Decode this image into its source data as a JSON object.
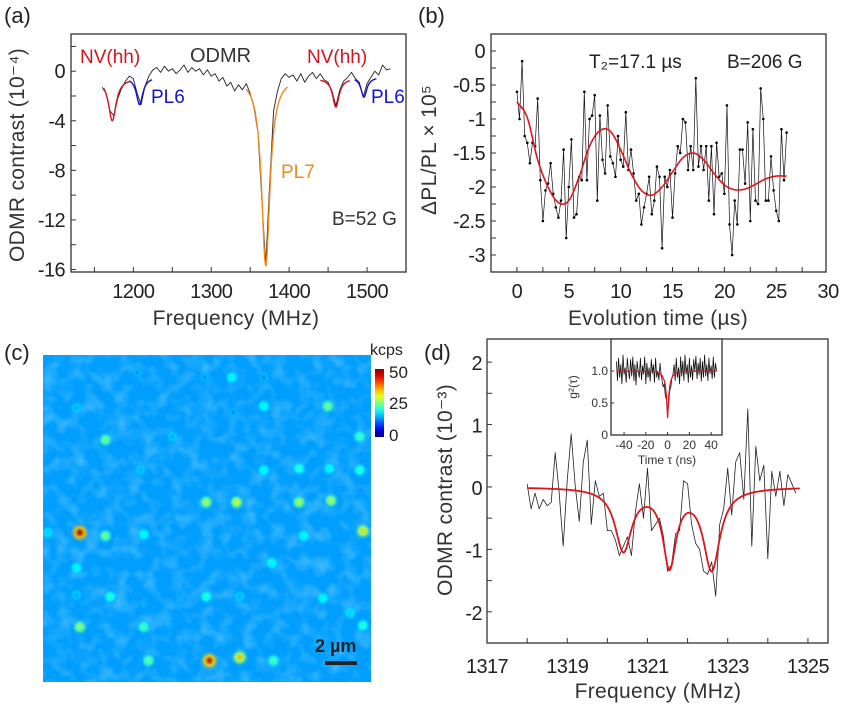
{
  "panels": {
    "a": "(a)",
    "b": "(b)",
    "c": "(c)",
    "d": "(d)"
  },
  "chart_data": [
    {
      "panel": "(a)",
      "type": "line",
      "xlabel": "Frequency (MHz)",
      "ylabel": "ODMR contrast (10⁻⁴)",
      "xlim": [
        1120,
        1550
      ],
      "ylim": [
        -16.2,
        3
      ],
      "xticks": [
        1200,
        1300,
        1400,
        1500
      ],
      "xtick_labels": [
        "1200",
        "1300",
        "1400",
        "1500"
      ],
      "xminor": 50,
      "yticks": [
        0,
        -4,
        -8,
        -12,
        -16
      ],
      "ytick_labels": [
        "0",
        "-4",
        "-8",
        "-12",
        "-16"
      ],
      "yminor": 2,
      "grid": false,
      "annotations": {
        "title": "ODMR",
        "nv_left": "NV(hh)",
        "nv_right": "NV(hh)",
        "pl6_left": "PL6",
        "pl6_right": "PL6",
        "pl7": "PL7",
        "field": "B=52 G"
      },
      "data": {
        "color": "#222222",
        "x_start": 1160,
        "x_step": 5,
        "y": [
          -1.3,
          -1.8,
          -3.2,
          -3.6,
          -2.2,
          -1.4,
          -0.8,
          -0.4,
          -0.6,
          -1.8,
          -2.7,
          -1.2,
          -0.4,
          0.1,
          0.3,
          -0.1,
          0.4,
          0.0,
          0.2,
          -0.2,
          0.1,
          0.5,
          -0.1,
          0.3,
          0.0,
          0.2,
          -0.3,
          0.1,
          -0.4,
          -0.2,
          -0.8,
          -0.5,
          -1.2,
          -0.9,
          -1.6,
          -1.1,
          -1.5,
          -1.0,
          -1.8,
          -3.0,
          -5.0,
          -10.5,
          -15.6,
          -9.0,
          -3.2,
          -1.6,
          -0.6,
          -0.2,
          -0.5,
          -0.3,
          -0.8,
          -0.2,
          -0.9,
          -0.4,
          -0.1,
          -0.6,
          -0.2,
          -0.7,
          -0.9,
          -1.6,
          -2.8,
          -1.5,
          -0.8,
          -0.5,
          -0.1,
          -0.6,
          -0.9,
          -2.1,
          -1.0,
          -0.5,
          0.0,
          -0.3,
          0.5,
          0.1,
          0.2
        ]
      },
      "fits": [
        {
          "label": "NV(hh)",
          "color": "#d4141c",
          "center": 1173,
          "depth": -3.4,
          "width": 6,
          "baseline": -0.6,
          "range": [
            1162,
            1195
          ]
        },
        {
          "label": "PL6",
          "color": "#1414c8",
          "center": 1208,
          "depth": -2.2,
          "width": 5,
          "baseline": -0.5,
          "range": [
            1195,
            1224
          ]
        },
        {
          "label": "PL7",
          "color": "#f08a1c",
          "center": 1370,
          "depth": -15.2,
          "width": 6.5,
          "baseline": -0.5,
          "range": [
            1345,
            1398
          ]
        },
        {
          "label": "NV(hh)",
          "color": "#d4141c",
          "center": 1460,
          "depth": -2.3,
          "width": 5,
          "baseline": -0.6,
          "range": [
            1440,
            1478
          ]
        },
        {
          "label": "PL6",
          "color": "#1414c8",
          "center": 1496,
          "depth": -1.6,
          "width": 4.5,
          "baseline": -0.5,
          "range": [
            1484,
            1512
          ]
        }
      ]
    },
    {
      "panel": "(b)",
      "type": "line",
      "xlabel": "Evolution time (µs)",
      "ylabel": "ΔPL/PL × 10⁵",
      "xlim": [
        -2.5,
        29.8
      ],
      "ylim": [
        -3.25,
        0.25
      ],
      "xticks": [
        0,
        5,
        10,
        15,
        20,
        25,
        30
      ],
      "xtick_labels": [
        "0",
        "5",
        "10",
        "15",
        "20",
        "25",
        "30"
      ],
      "xminor": 2.5,
      "yticks": [
        0,
        -0.5,
        -1,
        -1.5,
        -2,
        -2.5,
        -3
      ],
      "ytick_labels": [
        "0",
        "-0.5",
        "-1",
        "-1.5",
        "-2",
        "-2.5",
        "-3"
      ],
      "yminor": 0.25,
      "grid": false,
      "annotations": {
        "t2": "T₂=17.1 µs",
        "field": "B=206 G"
      },
      "data": {
        "color": "#111111",
        "x_start": 0,
        "x_step": 0.25,
        "y": [
          -0.6,
          -1.0,
          -0.15,
          -1.25,
          -1.35,
          -1.65,
          -1.35,
          -1.4,
          -0.7,
          -1.9,
          -2.5,
          -2.05,
          -1.95,
          -1.65,
          -2.1,
          -2.3,
          -2.45,
          -2.2,
          -1.45,
          -2.75,
          -2.0,
          -1.3,
          -2.45,
          -2.4,
          -1.85,
          -1.9,
          -0.6,
          -1.9,
          -1.0,
          -0.95,
          -0.65,
          -2.2,
          -0.95,
          -1.6,
          -1.8,
          -0.8,
          -1.55,
          -1.65,
          -1.85,
          -1.25,
          -1.6,
          -1.7,
          -0.9,
          -1.75,
          -1.45,
          -1.8,
          -2.2,
          -2.1,
          -2.55,
          -2.3,
          -2.1,
          -1.85,
          -2.4,
          -2.2,
          -1.7,
          -1.85,
          -2.9,
          -1.85,
          -2.0,
          -1.75,
          -2.45,
          -1.8,
          -1.4,
          -1.5,
          -1.0,
          -1.05,
          -1.75,
          -1.4,
          -1.75,
          -0.4,
          -1.7,
          -1.4,
          -1.75,
          -1.4,
          -2.2,
          -1.4,
          -2.4,
          -1.35,
          -1.85,
          -1.8,
          -2.1,
          -0.8,
          -2.55,
          -3.0,
          -2.2,
          -2.55,
          -1.45,
          -1.45,
          -1.95,
          -1.05,
          -2.5,
          -1.15,
          -2.2,
          -2.25,
          -0.55,
          -1.0,
          -2.2,
          -2.2,
          -1.55,
          -2.05,
          -2.35,
          -2.5,
          -1.15,
          -1.9,
          -1.2
        ]
      },
      "fit": {
        "color": "#e0141c",
        "x": [
          0,
          1,
          2,
          3,
          4,
          5,
          6,
          7,
          8,
          9,
          10,
          11,
          12,
          13,
          14,
          15,
          16,
          17,
          18,
          19,
          20,
          21,
          22,
          23,
          24,
          25,
          26
        ],
        "y": [
          -0.75,
          -0.98,
          -1.6,
          -2.0,
          -2.23,
          -2.2,
          -1.85,
          -1.4,
          -1.17,
          -1.18,
          -1.45,
          -1.8,
          -2.05,
          -2.12,
          -2.0,
          -1.78,
          -1.57,
          -1.5,
          -1.6,
          -1.8,
          -1.97,
          -2.04,
          -2.03,
          -1.96,
          -1.88,
          -1.84,
          -1.84
        ]
      }
    },
    {
      "panel": "(c)",
      "type": "heatmap",
      "colorbar": {
        "unit": "kcps",
        "ticks": [
          "50",
          "25",
          "0"
        ],
        "range": [
          0,
          50
        ],
        "colormap": "jet"
      },
      "scale_bar": "2 µm",
      "background_kcps": 10,
      "spots_um_kcps": [
        [
          2.3,
          11.1,
          50
        ],
        [
          10.4,
          19.1,
          48
        ],
        [
          12.3,
          18.9,
          35
        ],
        [
          20.0,
          11.0,
          33
        ],
        [
          10.2,
          9.2,
          28
        ],
        [
          12.1,
          9.2,
          30
        ],
        [
          16.0,
          9.2,
          28
        ],
        [
          18.0,
          9.1,
          28
        ],
        [
          3.9,
          5.3,
          25
        ],
        [
          2.3,
          17.0,
          27
        ],
        [
          3.9,
          11.3,
          25
        ],
        [
          17.8,
          3.2,
          25
        ],
        [
          19.8,
          5.1,
          22
        ],
        [
          6.3,
          17.0,
          22
        ],
        [
          6.6,
          19.1,
          24
        ],
        [
          14.4,
          19.1,
          22
        ],
        [
          10.2,
          15.1,
          20
        ],
        [
          4.2,
          15.1,
          20
        ],
        [
          13.8,
          3.2,
          18
        ],
        [
          11.8,
          1.4,
          18
        ],
        [
          13.8,
          7.2,
          18
        ],
        [
          16.0,
          7.1,
          20
        ],
        [
          17.9,
          7.1,
          18
        ],
        [
          19.8,
          7.2,
          20
        ],
        [
          6.3,
          11.2,
          18
        ],
        [
          0.3,
          11.1,
          16
        ],
        [
          2.1,
          13.3,
          18
        ],
        [
          14.3,
          13.0,
          18
        ],
        [
          16.3,
          11.3,
          18
        ],
        [
          17.5,
          15.2,
          18
        ],
        [
          20.0,
          16.9,
          20
        ],
        [
          19.2,
          16.1,
          16
        ],
        [
          2.1,
          3.3,
          14
        ],
        [
          6.1,
          7.2,
          14
        ],
        [
          8.1,
          5.1,
          14
        ],
        [
          11.9,
          3.6,
          12
        ],
        [
          5.9,
          1.1,
          12
        ],
        [
          10.1,
          1.4,
          12
        ],
        [
          13.8,
          1.4,
          12
        ],
        [
          12.3,
          15.1,
          14
        ],
        [
          2.1,
          15.0,
          14
        ]
      ]
    },
    {
      "panel": "(d)",
      "type": "line",
      "xlabel": "Frequency (MHz)",
      "ylabel": "ODMR contrast (10⁻³)",
      "xlim": [
        1317,
        1325.5
      ],
      "ylim": [
        -2.5,
        2.37
      ],
      "xticks": [
        1317,
        1319,
        1321,
        1323,
        1325
      ],
      "xtick_labels": [
        "1317",
        "1319",
        "1321",
        "1323",
        "1325"
      ],
      "xminor": 1,
      "yticks": [
        2,
        1,
        0,
        -1,
        -2
      ],
      "ytick_labels": [
        "2",
        "1",
        "0",
        "-1",
        "-2"
      ],
      "yminor": 0.5,
      "grid": false,
      "data": {
        "color": "#222222",
        "x_start": 1318,
        "x_step": 0.1,
        "y": [
          0.05,
          -0.35,
          -0.1,
          -0.35,
          -0.2,
          -0.3,
          -0.25,
          0.55,
          -0.1,
          -0.95,
          0.1,
          0.85,
          0.0,
          -0.55,
          0.4,
          0.75,
          -0.6,
          0.1,
          -0.15,
          -0.1,
          -0.7,
          -0.7,
          -0.85,
          -1.1,
          -0.95,
          -0.8,
          -1.1,
          -0.4,
          0.05,
          -0.5,
          0.3,
          -0.7,
          -0.6,
          -0.5,
          -0.8,
          -1.35,
          -1.25,
          -0.75,
          -0.7,
          0.1,
          0.05,
          -0.6,
          -0.9,
          -1.0,
          -1.35,
          -1.4,
          -1.2,
          -1.75,
          -0.6,
          -0.35,
          0.3,
          -0.45,
          0.4,
          0.55,
          -0.2,
          1.25,
          -0.95,
          0.65,
          0.1,
          0.35,
          -1.15,
          0.25,
          -0.15,
          0.25,
          -0.3,
          0.2,
          0.05,
          -0.1
        ]
      },
      "fit": {
        "color": "#e0141c",
        "range": [
          1318,
          1324.8
        ],
        "baseline": 0,
        "dips": [
          {
            "center": 1320.4,
            "depth": -1.0,
            "width": 0.25
          },
          {
            "center": 1321.55,
            "depth": -1.22,
            "width": 0.2
          },
          {
            "center": 1322.6,
            "depth": -1.3,
            "width": 0.25
          }
        ]
      },
      "inset": {
        "type": "line",
        "xlabel": "Time τ (ns)",
        "ylabel": "g²(τ)",
        "xlim": [
          -52,
          50
        ],
        "ylim": [
          0,
          1.5
        ],
        "xticks": [
          -40,
          -20,
          0,
          20,
          40
        ],
        "xtick_labels": [
          "-40",
          "-20",
          "0",
          "20",
          "40"
        ],
        "yticks": [
          0,
          0.5,
          1.0
        ],
        "ytick_labels": [
          "0",
          "0.5",
          "1.0"
        ],
        "data": {
          "color": "#111111",
          "x_start": -47,
          "x_step": 1,
          "y": [
            1.15,
            0.85,
            1.2,
            0.9,
            1.1,
            0.8,
            1.25,
            0.95,
            1.05,
            0.82,
            1.2,
            1.0,
            0.88,
            1.18,
            0.92,
            1.22,
            0.85,
            1.1,
            0.78,
            1.15,
            1.0,
            0.9,
            1.2,
            0.86,
            1.08,
            0.95,
            1.22,
            0.8,
            1.12,
            0.9,
            1.05,
            0.84,
            1.18,
            0.96,
            1.1,
            0.82,
            1.2,
            0.9,
            1.0,
            0.86,
            1.12,
            0.95,
            0.85,
            0.75,
            0.8,
            0.6,
            0.55,
            0.27,
            0.5,
            0.7,
            0.75,
            0.9,
            0.95,
            1.1,
            0.85,
            1.2,
            0.9,
            1.05,
            0.8,
            1.22,
            0.92,
            1.15,
            0.85,
            1.25,
            0.95,
            1.1,
            0.82,
            1.2,
            0.9,
            1.08,
            0.86,
            1.18,
            1.0,
            1.23,
            0.88,
            1.12,
            0.94,
            1.2,
            0.84,
            1.15,
            0.9,
            1.25,
            0.92,
            1.1,
            0.85,
            1.2,
            0.96,
            1.08,
            0.88,
            1.22,
            0.9,
            1.12,
            1.0
          ]
        },
        "fit": {
          "color": "#e0141c",
          "x": [
            -47,
            -10,
            -5,
            -3,
            -2,
            -1,
            0,
            1,
            2,
            3,
            5,
            10,
            45
          ],
          "y": [
            1.0,
            0.99,
            0.93,
            0.85,
            0.77,
            0.6,
            0.27,
            0.6,
            0.77,
            0.85,
            0.93,
            0.99,
            1.0
          ]
        }
      }
    }
  ]
}
